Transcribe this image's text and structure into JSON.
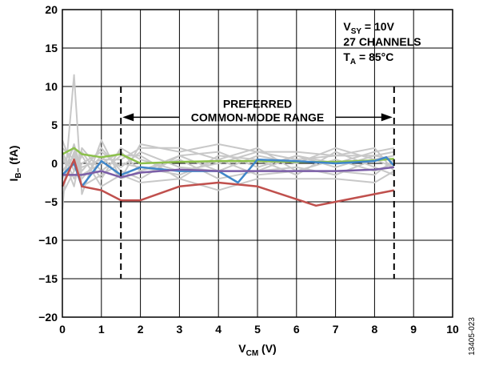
{
  "chart_data": {
    "type": "line",
    "title": "",
    "xlabel": {
      "main": "V",
      "sub": "CM",
      "suffix": " (V)"
    },
    "ylabel": {
      "main": "I",
      "sub": "B−",
      "suffix": " (fA)"
    },
    "xlim": [
      0,
      10
    ],
    "ylim": [
      -20,
      20
    ],
    "x_ticks": [
      0,
      1,
      2,
      3,
      4,
      5,
      6,
      7,
      8,
      9,
      10
    ],
    "y_ticks": [
      -20,
      -15,
      -10,
      -5,
      0,
      5,
      10,
      15,
      20
    ],
    "grid": true,
    "legend": "none",
    "colors": {
      "gray": "#c8c8c8",
      "green": "#8cc04b",
      "blue": "#3f86c9",
      "purple": "#7b5ea7",
      "red": "#c0504d",
      "dashed": "#000000"
    },
    "annotations": {
      "conditions": [
        {
          "main": "V",
          "sub": "SY",
          "rest": " = 10V"
        },
        {
          "main": "27 CHANNELS",
          "sub": "",
          "rest": ""
        },
        {
          "main": "T",
          "sub": "A",
          "rest": " = 85°C"
        }
      ],
      "range_label_line1": "PREFERRED",
      "range_label_line2": "COMMON-MODE RANGE",
      "range_start": 1.5,
      "range_end": 8.5,
      "range_y_top": 10,
      "range_y_bottom": -15,
      "arrow_y": 6,
      "figure_id": "13405-023"
    },
    "background_series": [
      {
        "x": [
          0,
          0.3,
          0.5,
          1,
          1.5,
          2,
          3,
          4,
          5,
          6,
          7,
          8,
          8.5
        ],
        "values": [
          -6,
          11.5,
          -4,
          3,
          -2,
          2.5,
          1.5,
          2.5,
          1.5,
          1.5,
          1,
          2,
          -1
        ]
      },
      {
        "x": [
          0,
          0.3,
          0.5,
          1,
          1.5,
          2,
          3,
          4,
          5,
          6,
          7,
          8,
          8.5
        ],
        "values": [
          3,
          -1,
          1.5,
          -2,
          2,
          0.5,
          -1,
          0,
          1.5,
          0.5,
          1,
          1,
          0.5
        ]
      },
      {
        "x": [
          0,
          0.3,
          0.5,
          1,
          1.5,
          2,
          3,
          4,
          5,
          6,
          7,
          8,
          8.5
        ],
        "values": [
          -2,
          2.5,
          -1,
          2,
          -1,
          -2,
          1,
          -1,
          -1,
          1,
          0,
          1.5,
          2
        ]
      },
      {
        "x": [
          0,
          0.3,
          0.5,
          1,
          1.5,
          2,
          3,
          4,
          5,
          6,
          7,
          8,
          8.5
        ],
        "values": [
          1,
          -3,
          2,
          -1,
          1,
          1,
          -2,
          1,
          0.5,
          -1.5,
          1.5,
          -0.5,
          -1.5
        ]
      },
      {
        "x": [
          0,
          0.3,
          0.5,
          1,
          1.5,
          2,
          3,
          4,
          5,
          6,
          7,
          8,
          8.5
        ],
        "values": [
          -1,
          1,
          -2,
          1,
          -2,
          -1,
          0.5,
          -2,
          -1,
          -0.5,
          -1.5,
          0.5,
          1
        ]
      },
      {
        "x": [
          0,
          0.3,
          0.5,
          1,
          1.5,
          2,
          3,
          4,
          5,
          6,
          7,
          8,
          8.5
        ],
        "values": [
          2,
          0.5,
          -0.5,
          0.5,
          0.5,
          2,
          2,
          0.5,
          2,
          -1,
          0.5,
          -1,
          0
        ]
      },
      {
        "x": [
          0,
          0.3,
          0.5,
          1,
          1.5,
          2,
          3,
          4,
          5,
          6,
          7,
          8,
          8.5
        ],
        "values": [
          -4,
          -1,
          1,
          -3,
          -1.5,
          -2.5,
          -2,
          -3.5,
          -2,
          -2,
          -2,
          -2.5,
          -1
        ]
      },
      {
        "x": [
          0,
          0.3,
          0.5,
          1,
          1.5,
          2,
          3,
          4,
          5,
          6,
          7,
          8,
          8.5
        ],
        "values": [
          0,
          2,
          -1.5,
          0,
          1.5,
          -1,
          1,
          1.5,
          -0.5,
          1,
          -0.5,
          1,
          1.5
        ]
      },
      {
        "x": [
          0,
          0.3,
          0.5,
          1,
          1.5,
          2,
          3,
          4,
          5,
          6,
          7,
          8,
          8.5
        ],
        "values": [
          1.5,
          -2,
          0,
          1.5,
          -0.5,
          1.5,
          -0.5,
          -1,
          1,
          0,
          2,
          0.5,
          -0.5
        ]
      },
      {
        "x": [
          0,
          0.3,
          0.5,
          1,
          1.5,
          2,
          3,
          4,
          5,
          6,
          7,
          8,
          8.5
        ],
        "values": [
          -3,
          1.5,
          -3,
          -1.5,
          0,
          -0.5,
          -1.5,
          0.5,
          -1.5,
          -1,
          -1,
          -1.5,
          0.5
        ]
      }
    ],
    "series": [
      {
        "color": "#8cc04b",
        "x": [
          0,
          0.3,
          0.5,
          1,
          1.5,
          2,
          3,
          4,
          5,
          6,
          7,
          8,
          8.5
        ],
        "values": [
          1.2,
          2,
          1.2,
          0.8,
          1.2,
          0,
          0.2,
          0.3,
          0.3,
          0.2,
          0.2,
          0.4,
          0.6
        ]
      },
      {
        "color": "#3f86c9",
        "x": [
          0,
          0.3,
          0.5,
          1,
          1.5,
          2,
          3,
          4,
          4.5,
          5,
          6,
          7,
          8,
          8.3,
          8.5
        ],
        "values": [
          -1.5,
          0,
          -3,
          0.3,
          -1.5,
          -0.5,
          -1,
          -1,
          -2.5,
          0.5,
          0.3,
          0,
          0.3,
          0.8,
          -0.3
        ]
      },
      {
        "color": "#7b5ea7",
        "x": [
          0,
          0.3,
          0.5,
          1,
          1.5,
          2,
          3,
          4,
          5,
          6,
          7,
          8,
          8.5
        ],
        "values": [
          -1.5,
          -1.5,
          -1.5,
          -1,
          -1.8,
          -1.2,
          -0.8,
          -1,
          -1,
          -1,
          -1,
          -0.8,
          -0.5
        ]
      },
      {
        "color": "#c0504d",
        "x": [
          0,
          0.3,
          0.5,
          1,
          1.5,
          2,
          3,
          4,
          5,
          6.5,
          7,
          8,
          8.5
        ],
        "values": [
          -3,
          0.5,
          -3,
          -3.5,
          -4.8,
          -4.8,
          -3,
          -2.5,
          -3,
          -5.5,
          -5,
          -4,
          -3.5
        ]
      }
    ]
  }
}
